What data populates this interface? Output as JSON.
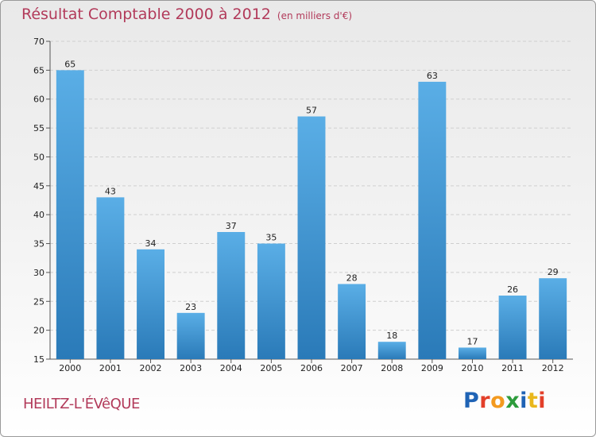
{
  "header": {
    "title": "Résultat Comptable 2000 à 2012",
    "subtitle": "(en milliers d'€)"
  },
  "footer": {
    "commune": "HEILTZ-L'ÉVêQUE",
    "brand": "Proxiti"
  },
  "colors": {
    "bar_light": "#5aaee6",
    "bar_dark": "#2a7ab8",
    "title": "#b23a5a",
    "brand_letters": [
      "#1f63b5",
      "#e3402a",
      "#f39a1f",
      "#2d9c3c",
      "#1f63b5",
      "#e9b71c",
      "#e3402a"
    ]
  },
  "chart_data": {
    "type": "bar",
    "title": "Résultat Comptable 2000 à 2012",
    "subtitle": "(en milliers d'€)",
    "categories": [
      "2000",
      "2001",
      "2002",
      "2003",
      "2004",
      "2005",
      "2006",
      "2007",
      "2008",
      "2009",
      "2010",
      "2011",
      "2012"
    ],
    "values": [
      65,
      43,
      34,
      23,
      37,
      35,
      57,
      28,
      18,
      63,
      17,
      26,
      29
    ],
    "ylim": [
      15,
      70
    ],
    "yticks": [
      15,
      20,
      25,
      30,
      35,
      40,
      45,
      50,
      55,
      60,
      65,
      70
    ],
    "grid": true,
    "data_labels": true
  }
}
